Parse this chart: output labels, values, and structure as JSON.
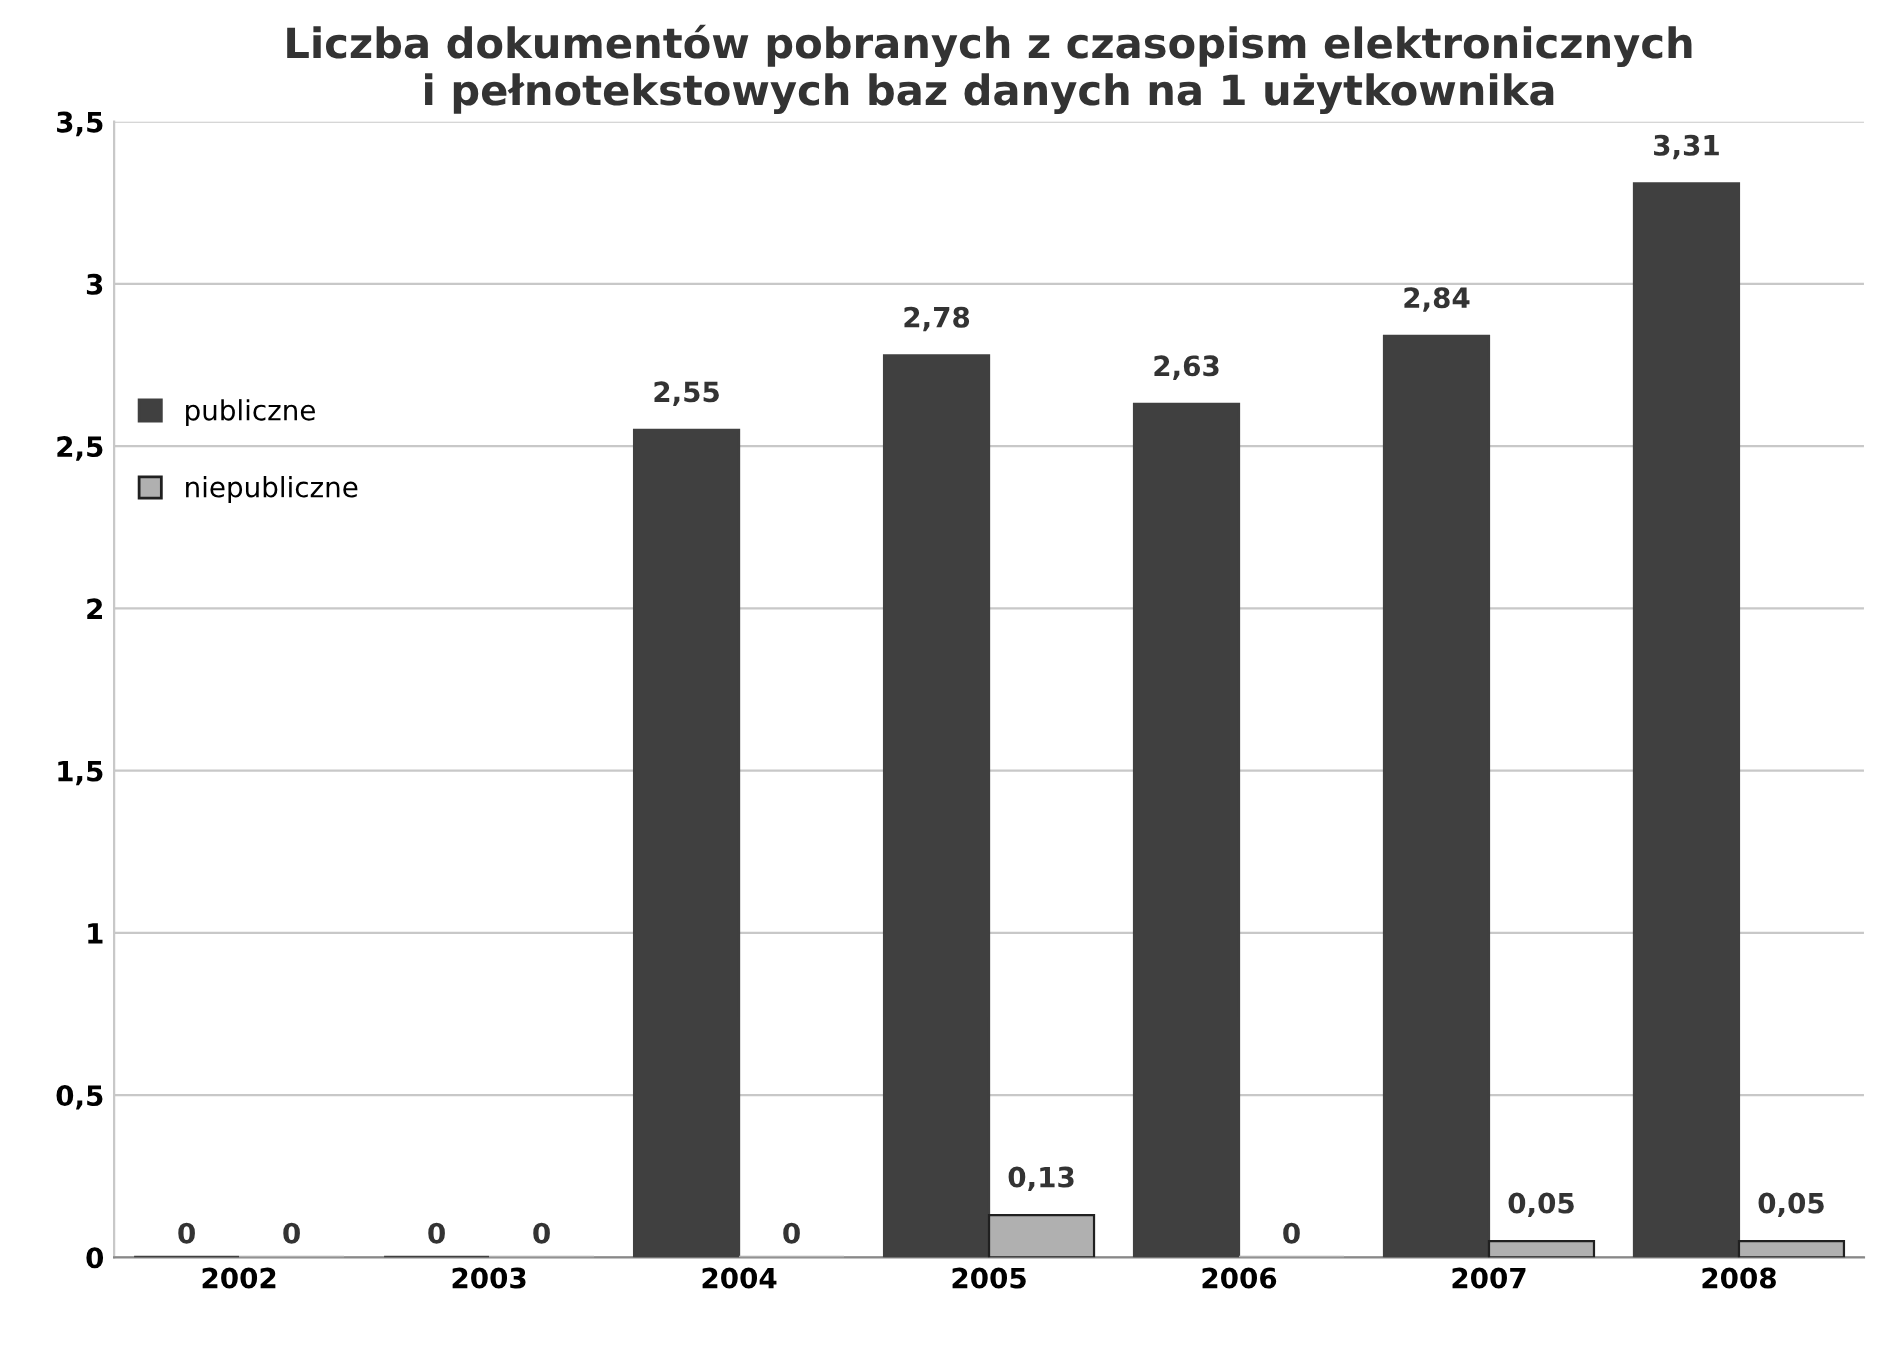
{
  "chart_data": {
    "type": "bar",
    "title": "Liczba dokumentów pobranych z czasopism elektronicznych\ni pełnotekstowych baz danych na 1 użytkownika",
    "categories": [
      "2002",
      "2003",
      "2004",
      "2005",
      "2006",
      "2007",
      "2008"
    ],
    "series": [
      {
        "name": "publiczne",
        "color": "#404040",
        "values": [
          0,
          0,
          2.55,
          2.78,
          2.63,
          2.84,
          3.31
        ],
        "value_labels": [
          "0",
          "0",
          "2,55",
          "2,78",
          "2,63",
          "2,84",
          "3,31"
        ]
      },
      {
        "name": "niepubliczne",
        "color": "#b0b0b0",
        "values": [
          0,
          0,
          0,
          0.13,
          0,
          0.05,
          0.05
        ],
        "value_labels": [
          "0",
          "0",
          "0",
          "0,13",
          "0",
          "0,05",
          "0,05"
        ]
      }
    ],
    "ylim": [
      0,
      3.5
    ],
    "yticks": [
      0,
      {
        "value": 0.5,
        "label": "0,5"
      },
      1,
      {
        "value": 1.5,
        "label": "1,5"
      },
      2,
      {
        "value": 2.5,
        "label": "2,5"
      },
      3,
      {
        "value": 3.5,
        "label": "3,5"
      }
    ],
    "grid": "y",
    "legend": "left"
  }
}
